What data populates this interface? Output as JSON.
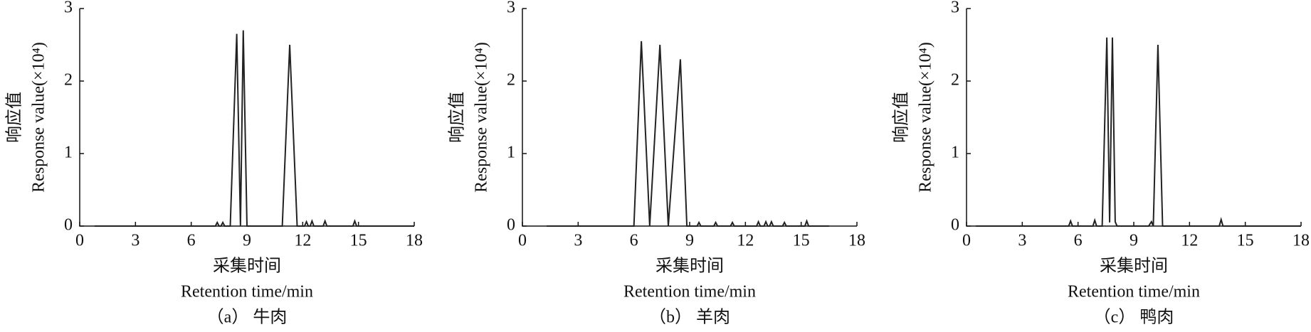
{
  "chart_data": [
    {
      "type": "line",
      "caption": "（a） 牛肉",
      "xlabel": "采集时间",
      "xlabel_en": "Retention time/min",
      "ylabel": "响应值",
      "ylabel_en": "Response value(×10⁴)",
      "color": "#222222",
      "xlim": [
        0,
        18
      ],
      "ylim": [
        0,
        3
      ],
      "xticks": [
        0,
        3,
        6,
        9,
        12,
        15,
        18
      ],
      "yticks": [
        0,
        1,
        2,
        3
      ],
      "x": [
        0.8,
        7.3,
        7.4,
        7.5,
        7.6,
        7.7,
        7.8,
        7.9,
        8.1,
        8.45,
        8.65,
        8.8,
        9.0,
        10.9,
        11.3,
        11.7,
        12.1,
        12.2,
        12.3,
        12.4,
        12.5,
        12.6,
        13.1,
        13.2,
        13.3,
        14.7,
        14.8,
        14.9,
        18.0
      ],
      "values": [
        0,
        0,
        0.05,
        0,
        0,
        0.05,
        0,
        0,
        0,
        2.65,
        0,
        2.7,
        0,
        0,
        2.5,
        0,
        0,
        0.06,
        0,
        0,
        0.07,
        0,
        0,
        0.07,
        0,
        0,
        0.07,
        0,
        0
      ]
    },
    {
      "type": "line",
      "caption": "（b） 羊肉",
      "xlabel": "采集时间",
      "xlabel_en": "Retention time/min",
      "ylabel": "响应值",
      "ylabel_en": "Response value(×10⁴)",
      "color": "#222222",
      "xlim": [
        0,
        18
      ],
      "ylim": [
        0,
        3
      ],
      "xticks": [
        0,
        3,
        6,
        9,
        12,
        15,
        18
      ],
      "yticks": [
        0,
        1,
        2,
        3
      ],
      "x": [
        1.3,
        6.0,
        6.4,
        6.85,
        7.4,
        7.85,
        8.5,
        8.85,
        9.4,
        9.5,
        9.6,
        10.3,
        10.4,
        10.5,
        11.2,
        11.3,
        11.4,
        12.6,
        12.7,
        12.8,
        13.0,
        13.1,
        13.2,
        13.3,
        13.4,
        13.5,
        14.0,
        14.1,
        14.2,
        15.2,
        15.3,
        15.4,
        16.5
      ],
      "values": [
        0,
        0,
        2.55,
        0,
        2.5,
        0,
        2.3,
        0,
        0,
        0.05,
        0,
        0,
        0.05,
        0,
        0,
        0.05,
        0,
        0,
        0.06,
        0,
        0,
        0.06,
        0,
        0,
        0.06,
        0,
        0,
        0.05,
        0,
        0,
        0.07,
        0,
        0
      ]
    },
    {
      "type": "line",
      "caption": "（c） 鸭肉",
      "xlabel": "采集时间",
      "xlabel_en": "Retention time/min",
      "ylabel": "响应值",
      "ylabel_en": "Response value(×10⁴)",
      "color": "#222222",
      "xlim": [
        0,
        18
      ],
      "ylim": [
        0,
        3
      ],
      "xticks": [
        0,
        3,
        6,
        9,
        12,
        15,
        18
      ],
      "yticks": [
        0,
        1,
        2,
        3
      ],
      "x": [
        0.5,
        5.5,
        5.6,
        5.7,
        6.8,
        6.9,
        7.0,
        7.3,
        7.55,
        7.7,
        7.85,
        8.0,
        8.1,
        9.8,
        9.95,
        10.05,
        10.3,
        10.55,
        13.6,
        13.7,
        13.8,
        18.0
      ],
      "values": [
        0,
        0,
        0.07,
        0,
        0,
        0.08,
        0,
        0,
        2.6,
        0.05,
        2.6,
        0.06,
        0,
        0,
        0.06,
        0,
        2.5,
        0,
        0,
        0.09,
        0,
        0
      ]
    }
  ]
}
